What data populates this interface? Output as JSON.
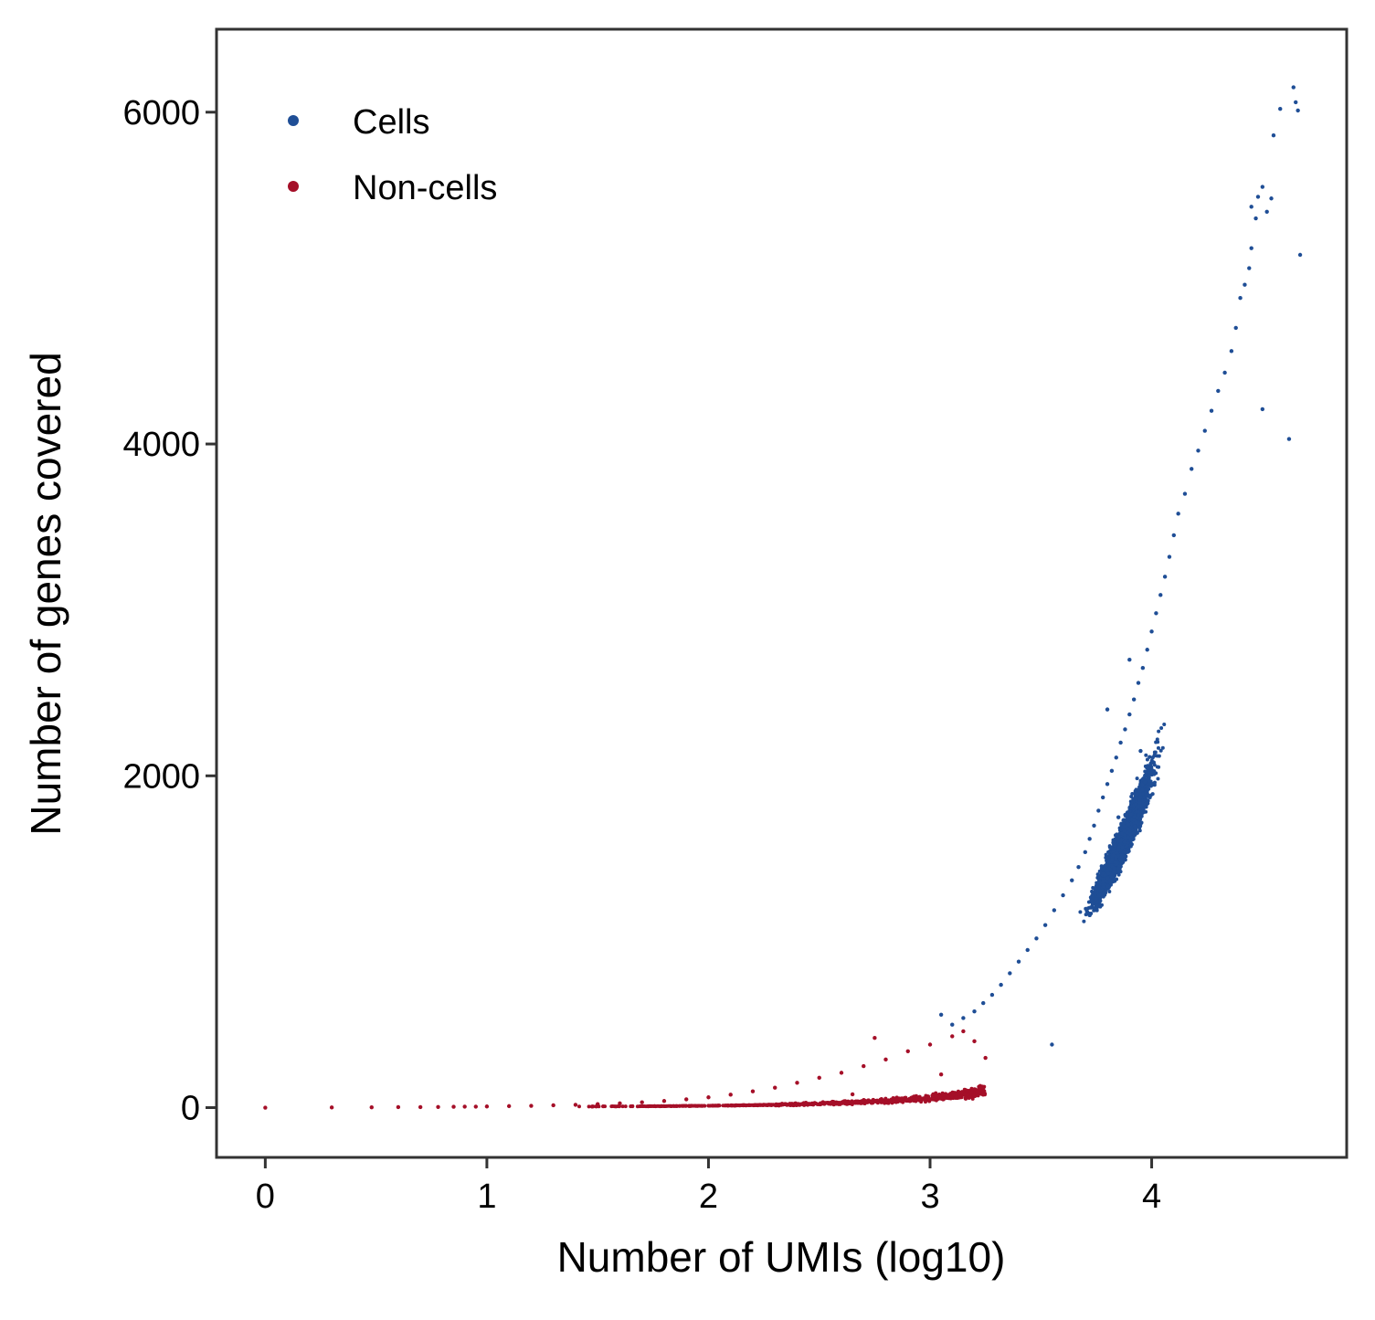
{
  "chart_data": {
    "type": "scatter",
    "xlabel": "Number of UMIs (log10)",
    "ylabel": "Number of genes covered",
    "xlim": [
      -0.22,
      4.88
    ],
    "ylim": [
      -300,
      6500
    ],
    "x_ticks": [
      0,
      1,
      2,
      3,
      4
    ],
    "y_ticks": [
      0,
      2000,
      4000,
      6000
    ],
    "grid": false,
    "legend": {
      "position": "top-left",
      "entries": [
        {
          "label": "Cells",
          "color": "#1f4e96"
        },
        {
          "label": "Non-cells",
          "color": "#a50f28"
        }
      ]
    },
    "series": [
      {
        "name": "Cells",
        "color": "#1f4e96",
        "description_trend": "y ≈ 0.134·10^(1.18x)-ish growth from x≈3.0 (≈500 genes) to x≈4.65 (≈6100 genes), dense core near x≈3.8–4.0, y≈1700–2800",
        "points": [
          [
            4.64,
            6150
          ],
          [
            4.58,
            6020
          ],
          [
            4.65,
            6060
          ],
          [
            4.66,
            6010
          ],
          [
            4.55,
            5860
          ],
          [
            4.5,
            5550
          ],
          [
            4.48,
            5490
          ],
          [
            4.54,
            5480
          ],
          [
            4.45,
            5430
          ],
          [
            4.52,
            5400
          ],
          [
            4.47,
            5360
          ],
          [
            4.67,
            5140
          ],
          [
            4.45,
            5180
          ],
          [
            4.5,
            4210
          ],
          [
            4.62,
            4030
          ],
          [
            4.44,
            5060
          ],
          [
            4.42,
            4960
          ],
          [
            4.4,
            4880
          ],
          [
            4.38,
            4700
          ],
          [
            4.36,
            4560
          ],
          [
            4.33,
            4430
          ],
          [
            4.3,
            4320
          ],
          [
            4.27,
            4200
          ],
          [
            4.24,
            4080
          ],
          [
            4.21,
            3960
          ],
          [
            4.18,
            3850
          ],
          [
            4.15,
            3700
          ],
          [
            4.12,
            3580
          ],
          [
            4.1,
            3450
          ],
          [
            4.08,
            3320
          ],
          [
            4.06,
            3200
          ],
          [
            4.04,
            3090
          ],
          [
            4.02,
            2980
          ],
          [
            4.0,
            2870
          ],
          [
            3.98,
            2760
          ],
          [
            3.96,
            2650
          ],
          [
            3.94,
            2560
          ],
          [
            3.92,
            2460
          ],
          [
            3.9,
            2370
          ],
          [
            3.88,
            2280
          ],
          [
            3.86,
            2200
          ],
          [
            3.84,
            2110
          ],
          [
            3.82,
            2030
          ],
          [
            3.8,
            1950
          ],
          [
            3.78,
            1870
          ],
          [
            3.76,
            1790
          ],
          [
            3.74,
            1700
          ],
          [
            3.72,
            1620
          ],
          [
            3.7,
            1540
          ],
          [
            3.67,
            1450
          ],
          [
            3.64,
            1370
          ],
          [
            3.6,
            1280
          ],
          [
            3.56,
            1190
          ],
          [
            3.52,
            1100
          ],
          [
            3.48,
            1020
          ],
          [
            3.44,
            950
          ],
          [
            3.4,
            880
          ],
          [
            3.36,
            810
          ],
          [
            3.32,
            740
          ],
          [
            3.28,
            680
          ],
          [
            3.24,
            630
          ],
          [
            3.2,
            580
          ],
          [
            3.15,
            540
          ],
          [
            3.1,
            500
          ],
          [
            3.05,
            560
          ],
          [
            3.55,
            380
          ],
          [
            3.95,
            2150
          ],
          [
            3.85,
            1750
          ],
          [
            3.9,
            2700
          ],
          [
            3.8,
            2400
          ]
        ]
      },
      {
        "name": "Non-cells",
        "color": "#a50f28",
        "description_trend": "near zero from x=0 to x≈2, rising and scattering to ≈300–500 genes by x≈3.1–3.2",
        "points": [
          [
            0.0,
            0
          ],
          [
            0.3,
            1
          ],
          [
            0.48,
            2
          ],
          [
            0.6,
            3
          ],
          [
            0.7,
            3
          ],
          [
            0.78,
            4
          ],
          [
            0.85,
            5
          ],
          [
            0.9,
            6
          ],
          [
            0.95,
            6
          ],
          [
            1.0,
            7
          ],
          [
            1.1,
            9
          ],
          [
            1.2,
            11
          ],
          [
            1.3,
            14
          ],
          [
            1.4,
            17
          ],
          [
            1.5,
            21
          ],
          [
            1.6,
            26
          ],
          [
            1.7,
            32
          ],
          [
            1.8,
            40
          ],
          [
            1.9,
            50
          ],
          [
            2.0,
            62
          ],
          [
            2.1,
            78
          ],
          [
            2.2,
            98
          ],
          [
            2.3,
            120
          ],
          [
            2.4,
            150
          ],
          [
            2.5,
            180
          ],
          [
            2.6,
            210
          ],
          [
            2.7,
            250
          ],
          [
            2.8,
            290
          ],
          [
            2.9,
            340
          ],
          [
            3.0,
            380
          ],
          [
            3.1,
            430
          ],
          [
            3.15,
            460
          ],
          [
            3.2,
            400
          ],
          [
            3.25,
            300
          ],
          [
            2.75,
            420
          ],
          [
            2.85,
            60
          ],
          [
            2.95,
            45
          ],
          [
            2.65,
            80
          ],
          [
            3.05,
            200
          ]
        ]
      }
    ]
  }
}
